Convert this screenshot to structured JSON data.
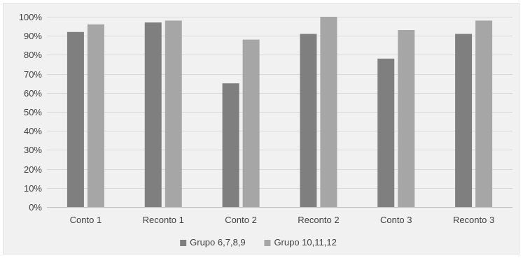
{
  "chart_data": {
    "type": "bar",
    "title": "",
    "xlabel": "",
    "ylabel": "",
    "ylim": [
      0,
      100
    ],
    "y_ticks": [
      "0%",
      "10%",
      "20%",
      "30%",
      "40%",
      "50%",
      "60%",
      "70%",
      "80%",
      "90%",
      "100%"
    ],
    "y_unit": "%",
    "grid": true,
    "legend_position": "bottom",
    "categories": [
      "Conto 1",
      "Reconto 1",
      "Conto 2",
      "Reconto 2",
      "Conto 3",
      "Reconto 3"
    ],
    "series": [
      {
        "name": "Grupo 6,7,8,9",
        "color": "#7f7f7f",
        "values": [
          92,
          97,
          65,
          91,
          78,
          91
        ]
      },
      {
        "name": "Grupo 10,11,12",
        "color": "#a6a6a6",
        "values": [
          96,
          98,
          88,
          100,
          93,
          98
        ]
      }
    ]
  }
}
